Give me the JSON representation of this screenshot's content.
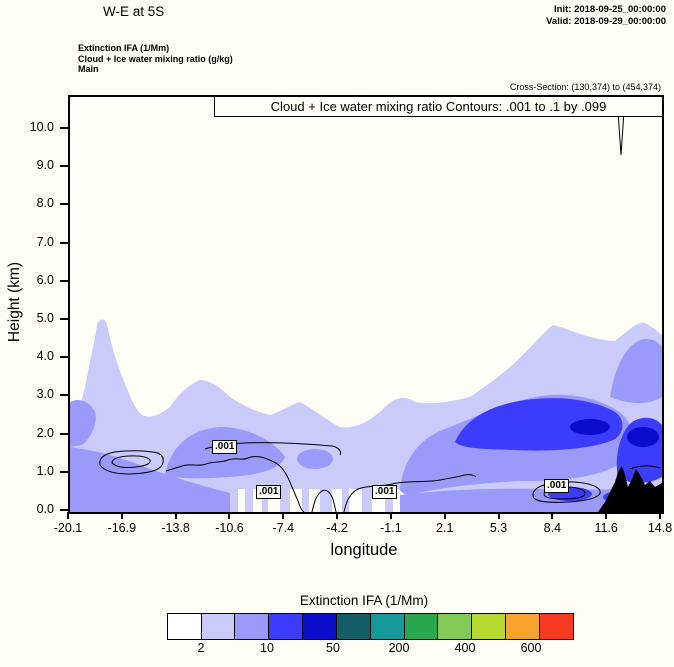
{
  "header": {
    "title": "W-E at 5S",
    "init_label": "Init: 2018-09-25_00:00:00",
    "valid_label": "Valid: 2018-09-29_00:00:00",
    "field_lines": [
      "Extinction IFA   (1/Mm)",
      "Cloud + Ice water mixing ratio   (g/kg)",
      "Main"
    ],
    "cross_section": "Cross-Section: (130,374) to (454,374)"
  },
  "chart_data": {
    "type": "heatmap",
    "subtype": "filled-contour-vertical-cross-section",
    "title": "Cloud + Ice water mixing ratio Contours: .001 to .1 by .099",
    "xlabel": "longitude",
    "ylabel": "Height (km)",
    "x_ticks": [
      "-20.1",
      "-16.9",
      "-13.8",
      "-10.6",
      "-7.4",
      "-4.2",
      "-1.1",
      "2.1",
      "5.3",
      "8.4",
      "11.6",
      "14.8"
    ],
    "y_ticks": [
      "0.0",
      "1.0",
      "2.0",
      "3.0",
      "4.0",
      "5.0",
      "6.0",
      "7.0",
      "8.0",
      "9.0",
      "10.0"
    ],
    "xlim": [
      -20.1,
      14.8
    ],
    "ylim": [
      0.0,
      10.9
    ],
    "grid": false,
    "contour_field": {
      "name": "Cloud + Ice water mixing ratio",
      "units": "g/kg",
      "start": ".001",
      "end": ".1",
      "interval": ".099",
      "labels": [
        ".001",
        ".001",
        ".001",
        ".001"
      ],
      "label_positions_data_coords": [
        {
          "lon": -10.7,
          "km": 1.7
        },
        {
          "lon": -8.1,
          "km": 0.5
        },
        {
          "lon": -1.2,
          "km": 0.5
        },
        {
          "lon": 9.0,
          "km": 0.6
        }
      ]
    },
    "shaded_field": {
      "name": "Extinction IFA",
      "units": "1/Mm",
      "levels_labeled": [
        2,
        10,
        50,
        200,
        400,
        600
      ],
      "max_shaded_category_in_plot": "50-200 (blue core near 2-3 km between lon 2 and 12)",
      "cloud_top_profile_km_approx": {
        "lon": [
          -20.1,
          -18.5,
          -16.9,
          -13.8,
          -10.6,
          -7.4,
          -4.2,
          -1.1,
          2.1,
          5.3,
          8.4,
          11.6,
          14.8
        ],
        "top_km": [
          2.2,
          5.0,
          2.6,
          3.4,
          2.6,
          2.2,
          2.4,
          2.9,
          3.0,
          3.6,
          4.9,
          4.5,
          4.6
        ]
      }
    },
    "terrain_note": "black filled terrain at surface between lon ~11 and 14.8, peaks ~1.2 km"
  },
  "colorbar": {
    "title": "Extinction IFA  (1/Mm)",
    "colors": [
      "#ffffff",
      "#cbcbfb",
      "#9a9afb",
      "#3c3cfc",
      "#0c0ccc",
      "#115e67",
      "#16999b",
      "#2aa84e",
      "#83c956",
      "#b8d932",
      "#f8a42c",
      "#f83a22"
    ],
    "tick_labels": [
      "2",
      "10",
      "50",
      "200",
      "400",
      "600"
    ],
    "label_boundaries": [
      1,
      3,
      5,
      7,
      9,
      11
    ]
  }
}
